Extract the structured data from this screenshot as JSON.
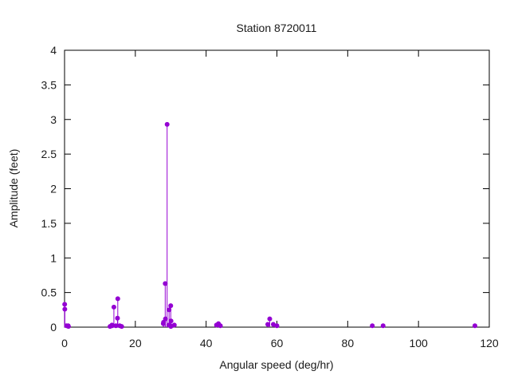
{
  "window": {
    "background_color": "#ffffff"
  },
  "chart_data": {
    "type": "scatter",
    "style": "impulse-stems-with-points",
    "title": "Station 8720011",
    "xlabel": "Angular speed (deg/hr)",
    "ylabel": "Amplitude (feet)",
    "xlim": [
      0,
      120
    ],
    "ylim": [
      0,
      4
    ],
    "xticks": [
      0,
      20,
      40,
      60,
      80,
      100,
      120
    ],
    "xtick_labels": [
      "0",
      "20",
      "40",
      "60",
      "80",
      "100",
      "120"
    ],
    "yticks": [
      0,
      0.5,
      1,
      1.5,
      2,
      2.5,
      3,
      3.5,
      4
    ],
    "ytick_labels": [
      "0",
      "0.5",
      "1",
      "1.5",
      "2",
      "2.5",
      "3",
      "3.5",
      "4"
    ],
    "grid": false,
    "legend": "none",
    "series_color": "#9400d3",
    "frame_color": "#000000",
    "text_color": "#1a1a1a",
    "points": [
      [
        0.04,
        0.33
      ],
      [
        0.08,
        0.26
      ],
      [
        0.54,
        0.02
      ],
      [
        1.02,
        0.02
      ],
      [
        1.1,
        0.01
      ],
      [
        12.85,
        0.01
      ],
      [
        13.4,
        0.03
      ],
      [
        13.47,
        0.02
      ],
      [
        13.94,
        0.29
      ],
      [
        14.5,
        0.02
      ],
      [
        14.96,
        0.13
      ],
      [
        15.04,
        0.41
      ],
      [
        15.59,
        0.02
      ],
      [
        16.14,
        0.01
      ],
      [
        27.9,
        0.05
      ],
      [
        27.97,
        0.07
      ],
      [
        28.44,
        0.63
      ],
      [
        28.51,
        0.12
      ],
      [
        28.98,
        2.93
      ],
      [
        29.46,
        0.03
      ],
      [
        29.53,
        0.25
      ],
      [
        29.96,
        0.02
      ],
      [
        30.0,
        0.31
      ],
      [
        30.04,
        0.01
      ],
      [
        30.08,
        0.09
      ],
      [
        31.02,
        0.03
      ],
      [
        42.93,
        0.03
      ],
      [
        43.48,
        0.05
      ],
      [
        44.03,
        0.02
      ],
      [
        57.42,
        0.04
      ],
      [
        57.97,
        0.12
      ],
      [
        58.98,
        0.04
      ],
      [
        60.0,
        0.02
      ],
      [
        86.95,
        0.02
      ],
      [
        90.0,
        0.02
      ],
      [
        115.94,
        0.02
      ]
    ]
  }
}
